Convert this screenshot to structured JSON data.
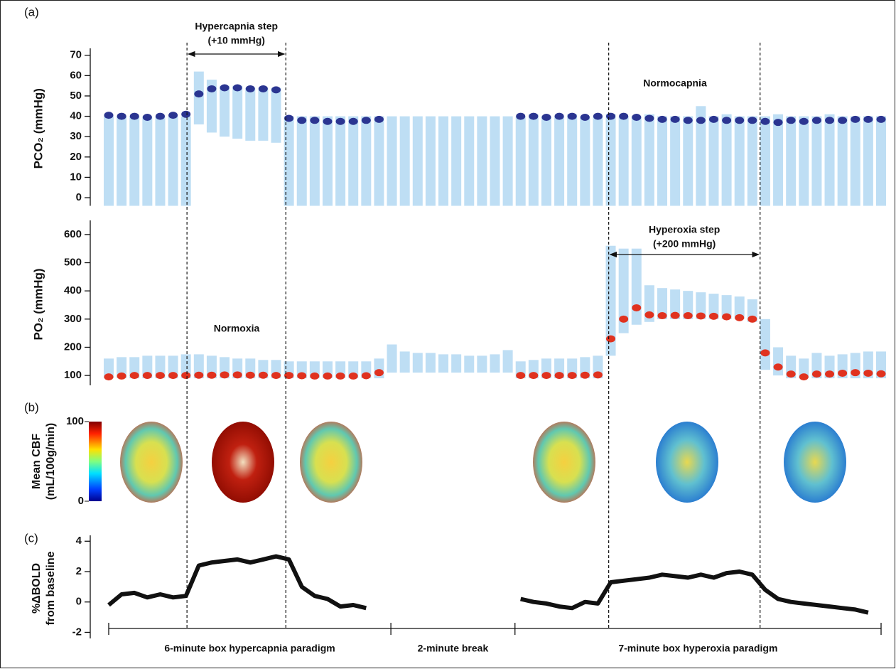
{
  "panel_labels": [
    "(a)",
    "(b)",
    "(c)"
  ],
  "xlim": [
    0,
    15
  ],
  "x": [
    0,
    0.25,
    0.5,
    0.75,
    1,
    1.25,
    1.5,
    1.75,
    2,
    2.25,
    2.5,
    2.75,
    3,
    3.25,
    3.5,
    3.75,
    4,
    4.25,
    4.5,
    4.75,
    5,
    5.25,
    5.5,
    5.75,
    6,
    6.25,
    6.5,
    6.75,
    7,
    7.25,
    7.5,
    7.75,
    8,
    8.25,
    8.5,
    8.75,
    9,
    9.25,
    9.5,
    9.75,
    10,
    10.25,
    10.5,
    10.75,
    11,
    11.25,
    11.5,
    11.75,
    12,
    12.25,
    12.5,
    12.75,
    13,
    13.25,
    13.5,
    13.75,
    14,
    14.25,
    14.5,
    14.75,
    15
  ],
  "events": [
    {
      "label": "Hypercapnia step",
      "detail": "(+10 mmHg)",
      "start": 1.52,
      "end": 3.44
    },
    {
      "label": "Hyperoxia step",
      "detail": "(+200 mmHg)",
      "start": 9.71,
      "end": 12.65
    }
  ],
  "segments": {
    "bounds": [
      0,
      5.48,
      7.89,
      15
    ],
    "labels": [
      "6-minute box hypercapnia paradigm",
      "2-minute break",
      "7-minute box hyperoxia paradigm"
    ]
  },
  "chart_data": [
    {
      "type": "scatter",
      "ylabel": "PCO₂ (mmHg)",
      "annotation": "Normocapnia",
      "ylim": [
        -4,
        72
      ],
      "yticks": [
        0,
        10,
        20,
        30,
        40,
        50,
        60,
        70
      ],
      "color": "#2b3591",
      "values": [
        40.5,
        40,
        40,
        39.5,
        40,
        40.5,
        41,
        51,
        53.5,
        54,
        54,
        53.5,
        53.5,
        53,
        39,
        38,
        38,
        37.5,
        37.5,
        37.5,
        38,
        38.5,
        null,
        null,
        null,
        null,
        null,
        null,
        null,
        null,
        null,
        null,
        40,
        40,
        39.5,
        40,
        40,
        39.5,
        40,
        40,
        40,
        39.5,
        39,
        38.5,
        38.5,
        38,
        38,
        38.5,
        38,
        38,
        38,
        37.5,
        37,
        38,
        37.5,
        38,
        38,
        38,
        38.5,
        38.5,
        38.5
      ],
      "band": {
        "color": "#b3d8f2",
        "low": [
          -4,
          -4,
          -4,
          -4,
          -4,
          -4,
          -4,
          36,
          32,
          30,
          29,
          28,
          28,
          27,
          -4,
          -4,
          -4,
          -4,
          -4,
          -4,
          -4,
          -4,
          -4,
          -4,
          -4,
          -4,
          -4,
          -4,
          -4,
          -4,
          -4,
          -4,
          -4,
          -4,
          -4,
          -4,
          -4,
          -4,
          -4,
          -4,
          -4,
          -4,
          -4,
          -4,
          -4,
          -4,
          -4,
          -4,
          -4,
          -4,
          -4,
          -4,
          -4,
          -4,
          -4,
          -4,
          -4,
          -4,
          -4,
          -4,
          -4
        ],
        "high": [
          40,
          40,
          40,
          40,
          40,
          40,
          40,
          62,
          58,
          55,
          55,
          54,
          54,
          54,
          40,
          40,
          40,
          40,
          40,
          40,
          40,
          40,
          40,
          40,
          40,
          40,
          40,
          40,
          40,
          40,
          40,
          40,
          40,
          41,
          40,
          40,
          41,
          40,
          40,
          41,
          40,
          40,
          41,
          40,
          40,
          40,
          45,
          40,
          41,
          40,
          40,
          40,
          41,
          40,
          40,
          40,
          41,
          40,
          40,
          40,
          40
        ]
      }
    },
    {
      "type": "scatter",
      "ylabel": "PO₂ (mmHg)",
      "annotation": "Normoxia",
      "ylim": [
        65,
        640
      ],
      "yticks": [
        100,
        200,
        300,
        400,
        500,
        600
      ],
      "color": "#e0321f",
      "values": [
        95,
        98,
        100,
        100,
        100,
        100,
        100,
        101,
        101,
        102,
        102,
        101,
        101,
        100,
        100,
        99,
        98,
        98,
        98,
        98,
        99,
        110,
        null,
        null,
        null,
        null,
        null,
        null,
        null,
        null,
        null,
        null,
        100,
        100,
        100,
        100,
        100,
        101,
        102,
        230,
        300,
        340,
        315,
        312,
        313,
        312,
        311,
        310,
        308,
        305,
        300,
        180,
        130,
        105,
        95,
        105,
        105,
        108,
        110,
        108,
        106
      ],
      "band": {
        "color": "#b3d8f2",
        "low": [
          90,
          90,
          90,
          90,
          90,
          90,
          90,
          90,
          90,
          90,
          90,
          90,
          90,
          90,
          90,
          90,
          90,
          90,
          90,
          90,
          90,
          90,
          110,
          110,
          110,
          110,
          110,
          110,
          110,
          110,
          110,
          110,
          90,
          90,
          90,
          90,
          90,
          90,
          90,
          170,
          250,
          280,
          290,
          300,
          300,
          300,
          300,
          300,
          300,
          300,
          290,
          120,
          100,
          90,
          90,
          90,
          90,
          90,
          90,
          90,
          90
        ],
        "high": [
          160,
          165,
          165,
          170,
          170,
          170,
          175,
          175,
          170,
          165,
          160,
          160,
          155,
          155,
          150,
          150,
          150,
          150,
          150,
          150,
          150,
          160,
          210,
          185,
          180,
          180,
          175,
          175,
          170,
          170,
          175,
          190,
          150,
          155,
          160,
          160,
          160,
          165,
          170,
          560,
          550,
          550,
          420,
          410,
          405,
          400,
          395,
          390,
          385,
          380,
          370,
          300,
          200,
          170,
          160,
          180,
          170,
          175,
          180,
          185,
          185
        ]
      }
    },
    {
      "type": "colorbar",
      "label": "Mean CBF",
      "unit": "(mL/100g/min)",
      "clim": [
        0,
        100
      ],
      "cticks": [
        0,
        100
      ]
    },
    {
      "type": "line",
      "ylabel": "%ΔBOLD",
      "ylabel2": "from baseline",
      "color": "#111111",
      "ylim": [
        -2.4,
        4.2
      ],
      "yticks": [
        -2,
        0,
        2,
        4
      ],
      "values": [
        -0.2,
        0.5,
        0.6,
        0.3,
        0.5,
        0.3,
        0.4,
        2.4,
        2.6,
        2.7,
        2.8,
        2.6,
        2.8,
        3.0,
        2.8,
        1.0,
        0.4,
        0.2,
        -0.3,
        -0.2,
        -0.4,
        null,
        null,
        null,
        null,
        null,
        null,
        null,
        null,
        null,
        null,
        null,
        0.2,
        0.0,
        -0.1,
        -0.3,
        -0.4,
        0.0,
        -0.1,
        1.3,
        1.4,
        1.5,
        1.6,
        1.8,
        1.7,
        1.6,
        1.8,
        1.6,
        1.9,
        2.0,
        1.8,
        0.8,
        0.2,
        0.0,
        -0.1,
        -0.2,
        -0.3,
        -0.4,
        -0.5,
        -0.7,
        null
      ]
    }
  ]
}
